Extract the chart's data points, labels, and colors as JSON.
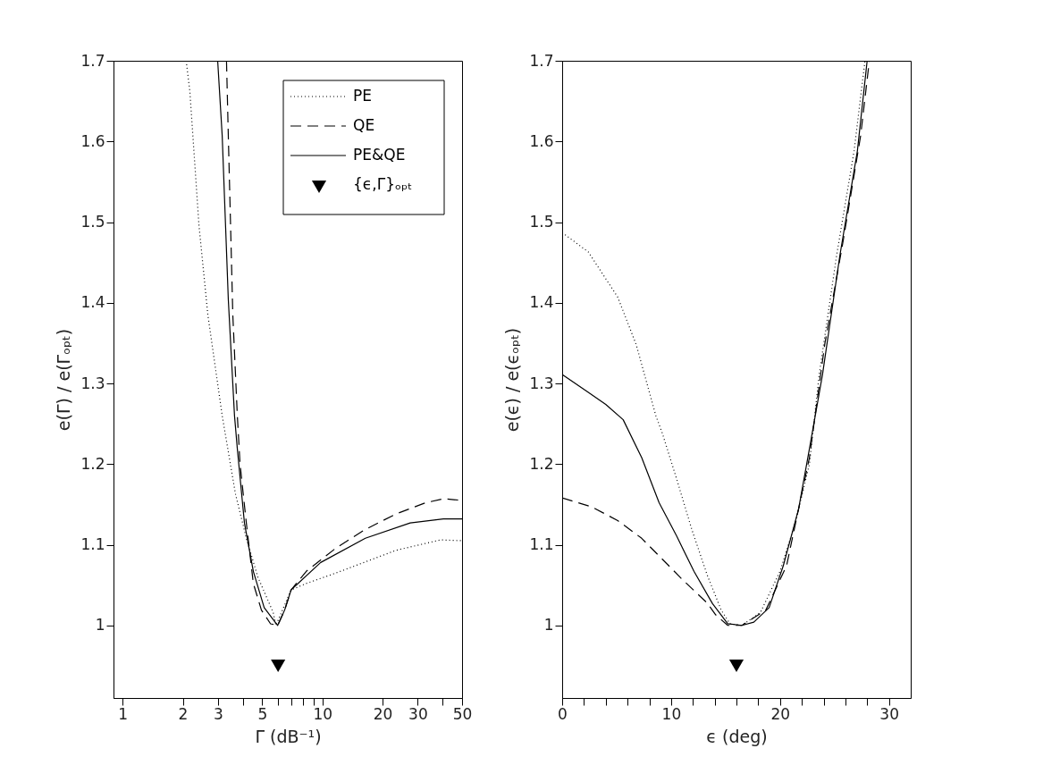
{
  "chart_data": [
    {
      "type": "line",
      "xlabel": "Γ (dB⁻¹)",
      "ylabel": "e(Γ) / e(Γₒₚₜ)",
      "log": "x",
      "grid": false,
      "legend": "top right",
      "xlim": [
        0.9,
        50
      ],
      "ylim": [
        0.91,
        1.7
      ],
      "xticks": [
        1,
        2,
        3,
        {
          "value": 4,
          "label": null
        },
        5,
        {
          "value": 6,
          "label": null
        },
        {
          "value": 7,
          "label": null
        },
        {
          "value": 8,
          "label": null
        },
        {
          "value": 9,
          "label": null
        },
        10,
        20,
        30,
        {
          "value": 40,
          "label": null
        },
        50
      ],
      "yticks": [
        1,
        1.1,
        1.2,
        1.3,
        1.4,
        1.5,
        1.6,
        1.7
      ],
      "series": [
        {
          "name": "PE",
          "type": "line",
          "color": "#000000",
          "line_style": "dotted",
          "x": [
            2.08,
            2.17,
            2.41,
            2.67,
            3.15,
            3.67,
            4.16,
            4.75,
            5.67,
            5.85,
            6.97,
            8.3,
            11.7,
            23.3,
            39,
            50
          ],
          "values": [
            1.7,
            1.662,
            1.496,
            1.385,
            1.26,
            1.163,
            1.108,
            1.06,
            1.016,
            1.0,
            1.044,
            1.052,
            1.065,
            1.093,
            1.106,
            1.105
          ]
        },
        {
          "name": "QE",
          "type": "line",
          "color": "#000000",
          "line_style": "dashed",
          "x": [
            3.31,
            3.38,
            3.56,
            3.75,
            3.87,
            4.16,
            4.51,
            4.95,
            5.5,
            5.97,
            6.47,
            6.97,
            8.3,
            11.7,
            16.4,
            23.3,
            32.8,
            40.3,
            50
          ],
          "values": [
            1.7,
            1.607,
            1.385,
            1.26,
            1.2,
            1.127,
            1.052,
            1.019,
            1.002,
            1.0,
            1.019,
            1.044,
            1.067,
            1.096,
            1.119,
            1.138,
            1.152,
            1.157,
            1.155
          ]
        },
        {
          "name": "PE&QE",
          "type": "line",
          "color": "#000000",
          "line_style": "solid",
          "x": [
            2.99,
            3.15,
            3.38,
            3.63,
            3.75,
            4.07,
            4.51,
            5.11,
            5.97,
            6.47,
            6.97,
            9.8,
            16.4,
            27.5,
            40.3,
            50
          ],
          "values": [
            1.7,
            1.607,
            1.404,
            1.26,
            1.219,
            1.127,
            1.067,
            1.022,
            1.0,
            1.019,
            1.044,
            1.078,
            1.108,
            1.127,
            1.132,
            1.132
          ]
        },
        {
          "name": "{ϵ,Γ}ₒₚₜ",
          "type": "scatter",
          "color": "#000000",
          "marker": "triangle",
          "x": [
            6
          ],
          "values": [
            0.95
          ]
        }
      ]
    },
    {
      "type": "line",
      "xlabel": "ϵ (deg)",
      "ylabel": "e(ϵ) / e(ϵₒₚₜ)",
      "grid": false,
      "xlim": [
        0,
        32
      ],
      "ylim": [
        0.91,
        1.7
      ],
      "xticks": [
        0,
        {
          "value": 2,
          "label": null
        },
        {
          "value": 4,
          "label": null
        },
        {
          "value": 6,
          "label": null
        },
        {
          "value": 8,
          "label": null
        },
        10,
        {
          "value": 12,
          "label": null
        },
        {
          "value": 14,
          "label": null
        },
        {
          "value": 16,
          "label": null
        },
        {
          "value": 18,
          "label": null
        },
        20,
        {
          "value": 22,
          "label": null
        },
        {
          "value": 24,
          "label": null
        },
        {
          "value": 26,
          "label": null
        },
        {
          "value": 28,
          "label": null
        },
        30
      ],
      "yticks": [
        1,
        1.1,
        1.2,
        1.3,
        1.4,
        1.5,
        1.6,
        1.7
      ],
      "series": [
        {
          "type": "line",
          "color": "#000000",
          "line_style": "dotted",
          "x": [
            0,
            2.4,
            5.1,
            6.8,
            8.6,
            9.2,
            10.5,
            11.9,
            13.3,
            14.6,
            15.4,
            16.5,
            18.2,
            20.0,
            21.4,
            22.7,
            23.6,
            25.2,
            26.8,
            27.8
          ],
          "values": [
            1.487,
            1.463,
            1.407,
            1.348,
            1.26,
            1.238,
            1.182,
            1.119,
            1.063,
            1.019,
            1.002,
            1.0,
            1.016,
            1.067,
            1.127,
            1.2,
            1.311,
            1.459,
            1.588,
            1.7
          ]
        },
        {
          "type": "line",
          "color": "#000000",
          "line_style": "dashed",
          "x": [
            0,
            2.7,
            5.1,
            7.3,
            9.2,
            11.1,
            13.3,
            14.1,
            15.2,
            16.5,
            18.7,
            20.6,
            22.7,
            24.1,
            25.8,
            27.4,
            28.2
          ],
          "values": [
            1.158,
            1.147,
            1.13,
            1.108,
            1.082,
            1.056,
            1.028,
            1.013,
            1.0,
            1.0,
            1.019,
            1.074,
            1.208,
            1.348,
            1.477,
            1.607,
            1.7
          ]
        },
        {
          "type": "line",
          "color": "#000000",
          "line_style": "solid",
          "x": [
            0,
            2.4,
            4.0,
            5.6,
            7.3,
            8.9,
            10.5,
            12.1,
            13.8,
            15.2,
            16.5,
            17.6,
            19.0,
            20.3,
            21.7,
            22.7,
            23.9,
            25.5,
            27.1,
            28.0
          ],
          "values": [
            1.311,
            1.289,
            1.274,
            1.255,
            1.208,
            1.152,
            1.111,
            1.067,
            1.027,
            1.002,
            1.0,
            1.004,
            1.022,
            1.074,
            1.144,
            1.219,
            1.311,
            1.459,
            1.588,
            1.7
          ]
        },
        {
          "type": "scatter",
          "color": "#000000",
          "marker": "triangle",
          "x": [
            16
          ],
          "values": [
            0.95
          ]
        }
      ]
    }
  ]
}
